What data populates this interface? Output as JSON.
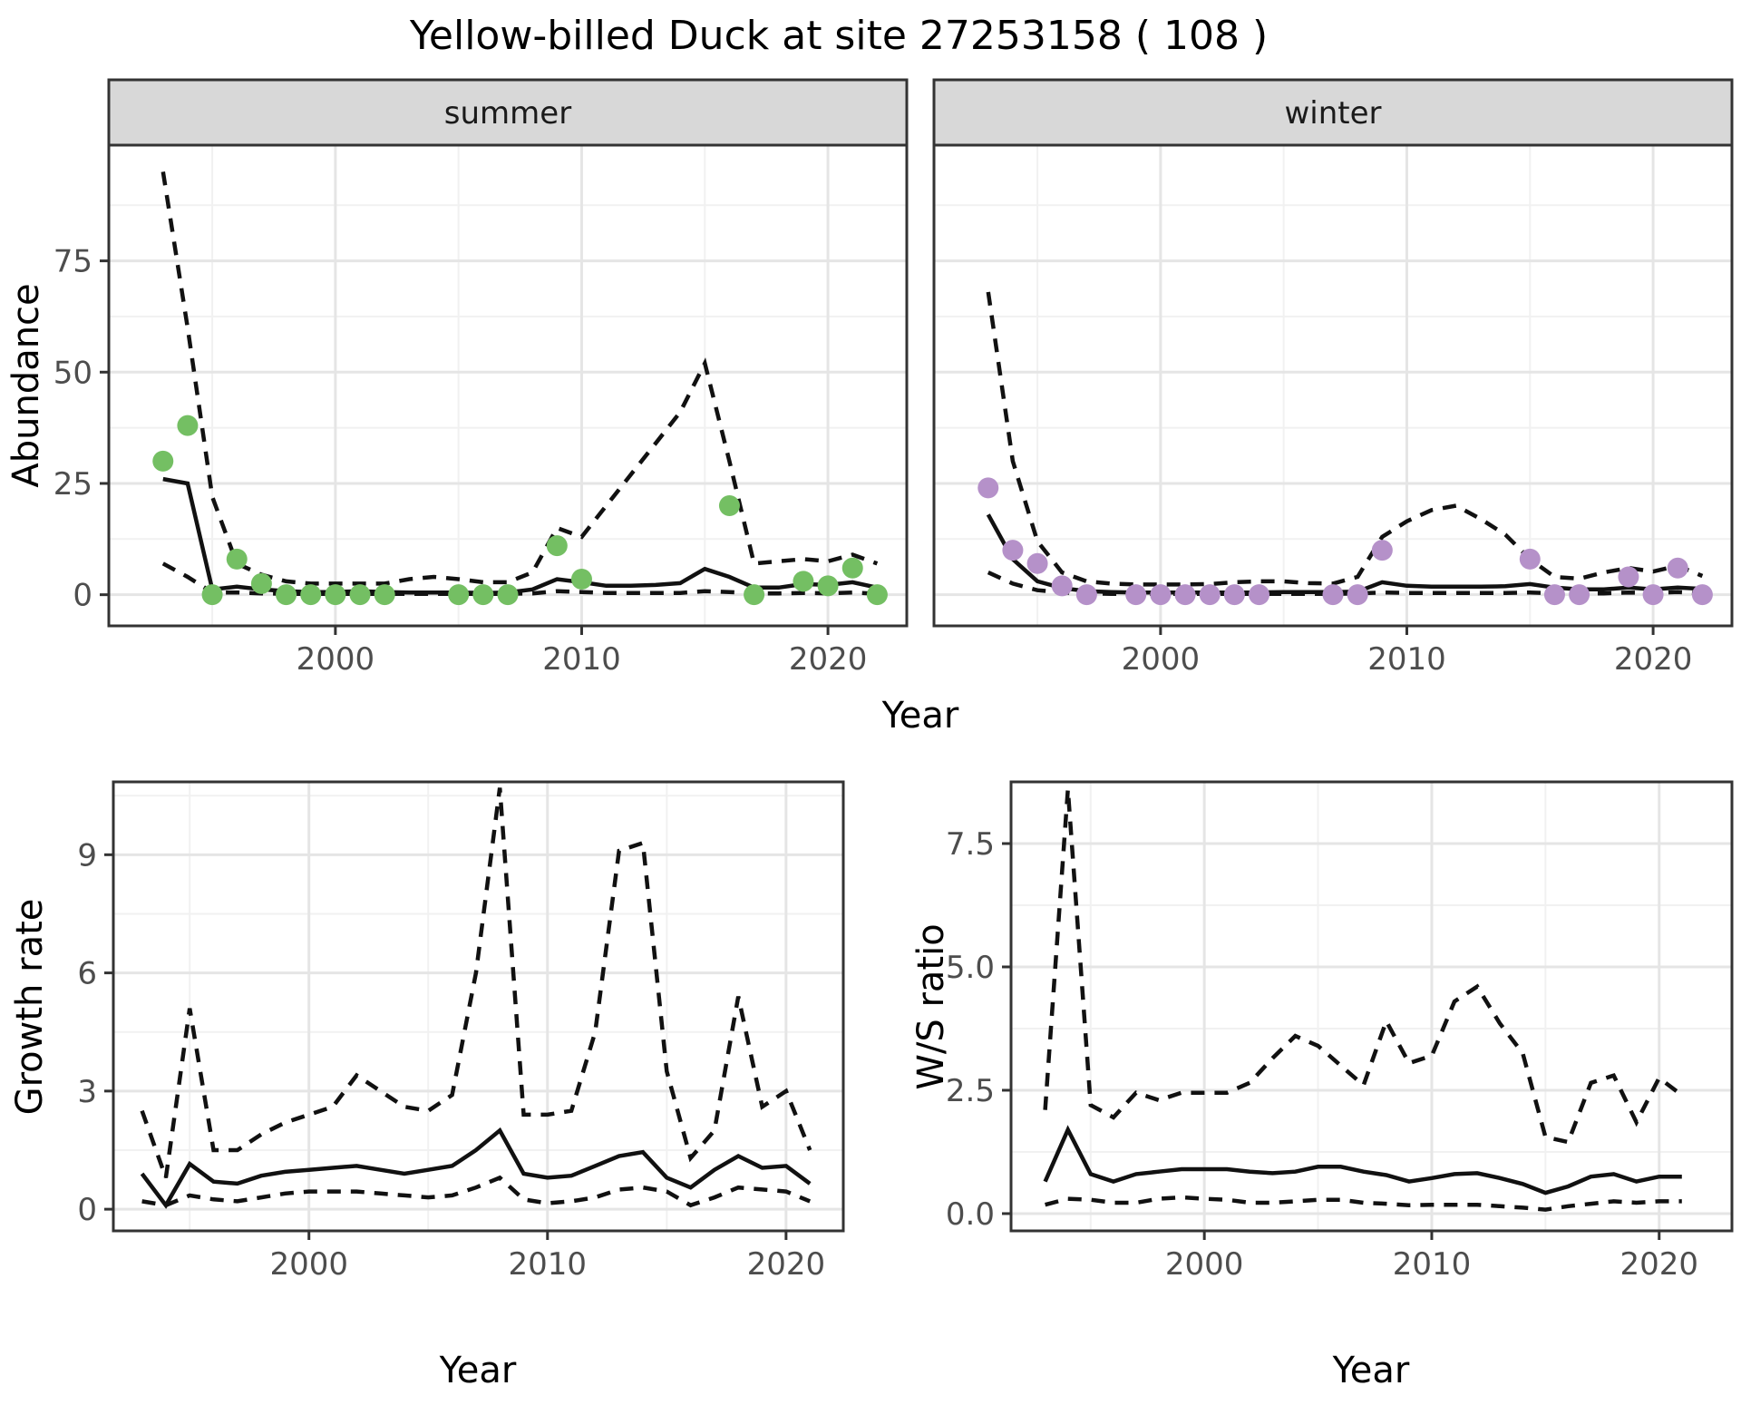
{
  "title": "Yellow-billed Duck at site 27253158 ( 108 )",
  "colors": {
    "summer_point": "#74bf63",
    "winter_point": "#b591c9",
    "line": "#111111",
    "grid_major": "#e5e5e5",
    "grid_minor": "#f1f1f1",
    "panel_border": "#333333",
    "strip_fill": "#d8d8d8",
    "strip_border": "#333333",
    "tick_label": "#4d4d4d",
    "panel_bg": "#ffffff"
  },
  "chart_data": [
    {
      "id": "abundance-summer",
      "type": "line",
      "facet_label": "summer",
      "xlabel": "Year",
      "ylabel": "Abundance",
      "grid": true,
      "legend_position": "none",
      "xlim": [
        1990.8,
        2023.2
      ],
      "ylim": [
        -7,
        101
      ],
      "x_ticks": [
        2000,
        2010,
        2020
      ],
      "x_tick_labels": [
        "2000",
        "2010",
        "2020"
      ],
      "x_minor": [
        1995,
        2005,
        2015
      ],
      "y_ticks": [
        0,
        25,
        50,
        75
      ],
      "y_tick_labels": [
        "0",
        "25",
        "50",
        "75"
      ],
      "y_minor": [
        12.5,
        37.5,
        62.5,
        87.5
      ],
      "x": [
        1993,
        1994,
        1995,
        1996,
        1997,
        1998,
        1999,
        2000,
        2001,
        2002,
        2003,
        2004,
        2005,
        2006,
        2007,
        2008,
        2009,
        2010,
        2011,
        2012,
        2013,
        2014,
        2015,
        2016,
        2017,
        2018,
        2019,
        2020,
        2021,
        2022
      ],
      "series": [
        {
          "name": "model-median",
          "style": "solid",
          "values": [
            26,
            25,
            1.2,
            1.8,
            1.2,
            0.8,
            0.6,
            0.6,
            0.8,
            0.6,
            0.5,
            0.5,
            0.5,
            0.4,
            0.5,
            1.2,
            3.5,
            2.8,
            2.0,
            2.0,
            2.2,
            2.6,
            5.8,
            4.0,
            1.6,
            1.6,
            2.4,
            2.2,
            2.8,
            1.6
          ]
        },
        {
          "name": "upper-credible-interval",
          "style": "dashed",
          "values": [
            95,
            60,
            22,
            7,
            4.5,
            3,
            2.5,
            2.5,
            2.5,
            2.5,
            3.5,
            4,
            3.5,
            2.8,
            2.8,
            5,
            15,
            13,
            20,
            27,
            34,
            41,
            52,
            30,
            7,
            7.5,
            8,
            7.5,
            9,
            7
          ]
        },
        {
          "name": "lower-credible-interval",
          "style": "dashed",
          "values": [
            7,
            4,
            0.5,
            0.5,
            0.3,
            0.2,
            0.2,
            0.2,
            0.2,
            0.2,
            0.2,
            0.2,
            0.2,
            0.2,
            0.2,
            0.3,
            0.8,
            0.6,
            0.4,
            0.4,
            0.4,
            0.4,
            0.8,
            0.6,
            0.3,
            0.3,
            0.4,
            0.3,
            0.5,
            0.2
          ]
        }
      ],
      "points": {
        "name": "observed-summer-counts",
        "color_key": "summer_point",
        "data": [
          [
            1993,
            30
          ],
          [
            1994,
            38
          ],
          [
            1995,
            0
          ],
          [
            1996,
            8
          ],
          [
            1997,
            2.5
          ],
          [
            1998,
            0
          ],
          [
            1999,
            0
          ],
          [
            2000,
            0
          ],
          [
            2001,
            0
          ],
          [
            2002,
            0
          ],
          [
            2005,
            0
          ],
          [
            2006,
            0
          ],
          [
            2007,
            0
          ],
          [
            2009,
            11
          ],
          [
            2010,
            3.5
          ],
          [
            2016,
            20
          ],
          [
            2017,
            0
          ],
          [
            2019,
            3
          ],
          [
            2020,
            2
          ],
          [
            2021,
            6
          ],
          [
            2022,
            0
          ]
        ]
      }
    },
    {
      "id": "abundance-winter",
      "type": "line",
      "facet_label": "winter",
      "xlabel": "Year",
      "ylabel": "",
      "grid": true,
      "legend_position": "none",
      "xlim": [
        1990.8,
        2023.2
      ],
      "ylim": [
        -7,
        101
      ],
      "x_ticks": [
        2000,
        2010,
        2020
      ],
      "x_tick_labels": [
        "2000",
        "2010",
        "2020"
      ],
      "x_minor": [
        1995,
        2005,
        2015
      ],
      "y_ticks": [
        0,
        25,
        50,
        75
      ],
      "y_tick_labels": [
        "0",
        "25",
        "50",
        "75"
      ],
      "y_minor": [
        12.5,
        37.5,
        62.5,
        87.5
      ],
      "x": [
        1993,
        1994,
        1995,
        1996,
        1997,
        1998,
        1999,
        2000,
        2001,
        2002,
        2003,
        2004,
        2005,
        2006,
        2007,
        2008,
        2009,
        2010,
        2011,
        2012,
        2013,
        2014,
        2015,
        2016,
        2017,
        2018,
        2019,
        2020,
        2021,
        2022
      ],
      "series": [
        {
          "name": "model-median",
          "style": "solid",
          "values": [
            18,
            8,
            3,
            1.5,
            0.8,
            0.6,
            0.5,
            0.5,
            0.5,
            0.5,
            0.5,
            0.5,
            0.6,
            0.6,
            0.6,
            0.7,
            2.8,
            2.0,
            1.8,
            1.8,
            1.8,
            1.9,
            2.4,
            1.6,
            1.2,
            1.2,
            1.6,
            1.2,
            1.6,
            1.3
          ]
        },
        {
          "name": "upper-credible-interval",
          "style": "dashed",
          "values": [
            68,
            30,
            12,
            5,
            3,
            2.5,
            2.3,
            2.3,
            2.3,
            2.4,
            2.8,
            3,
            3,
            2.6,
            2.5,
            4,
            13,
            16.5,
            19,
            20,
            17,
            13.5,
            8,
            4,
            3.6,
            5,
            6,
            5.2,
            6.5,
            4.2
          ]
        },
        {
          "name": "lower-credible-interval",
          "style": "dashed",
          "values": [
            5,
            2.5,
            1,
            0.5,
            0.3,
            0.2,
            0.2,
            0.2,
            0.2,
            0.2,
            0.2,
            0.2,
            0.2,
            0.2,
            0.2,
            0.3,
            0.5,
            0.4,
            0.4,
            0.4,
            0.4,
            0.4,
            0.5,
            0.3,
            0.3,
            0.3,
            0.5,
            0.4,
            0.6,
            0.3
          ]
        }
      ],
      "points": {
        "name": "observed-winter-counts",
        "color_key": "winter_point",
        "data": [
          [
            1993,
            24
          ],
          [
            1994,
            10
          ],
          [
            1995,
            7
          ],
          [
            1996,
            2
          ],
          [
            1997,
            0
          ],
          [
            1999,
            0
          ],
          [
            2000,
            0
          ],
          [
            2001,
            0
          ],
          [
            2002,
            0
          ],
          [
            2003,
            0
          ],
          [
            2004,
            0
          ],
          [
            2007,
            0
          ],
          [
            2008,
            0
          ],
          [
            2009,
            10
          ],
          [
            2015,
            8
          ],
          [
            2016,
            0
          ],
          [
            2017,
            0
          ],
          [
            2019,
            4
          ],
          [
            2020,
            0
          ],
          [
            2021,
            6
          ],
          [
            2022,
            0
          ]
        ]
      }
    },
    {
      "id": "growth-rate",
      "type": "line",
      "facet_label": "",
      "xlabel": "Year",
      "ylabel": "Growth rate",
      "grid": true,
      "legend_position": "none",
      "xlim": [
        1991.8,
        2022.4
      ],
      "ylim": [
        -0.55,
        10.85
      ],
      "x_ticks": [
        2000,
        2010,
        2020
      ],
      "x_tick_labels": [
        "2000",
        "2010",
        "2020"
      ],
      "x_minor": [
        1995,
        2005,
        2015
      ],
      "y_ticks": [
        0,
        3,
        6,
        9
      ],
      "y_tick_labels": [
        "0",
        "3",
        "6",
        "9"
      ],
      "y_minor": [
        1.5,
        4.5,
        7.5,
        10.5
      ],
      "x": [
        1993,
        1994,
        1995,
        1996,
        1997,
        1998,
        1999,
        2000,
        2001,
        2002,
        2003,
        2004,
        2005,
        2006,
        2007,
        2008,
        2009,
        2010,
        2011,
        2012,
        2013,
        2014,
        2015,
        2016,
        2017,
        2018,
        2019,
        2020,
        2021
      ],
      "series": [
        {
          "name": "model-median",
          "style": "solid",
          "values": [
            0.9,
            0.1,
            1.15,
            0.7,
            0.65,
            0.85,
            0.95,
            1.0,
            1.05,
            1.1,
            1.0,
            0.9,
            1.0,
            1.1,
            1.5,
            2.0,
            0.9,
            0.8,
            0.85,
            1.1,
            1.35,
            1.45,
            0.8,
            0.55,
            1.0,
            1.35,
            1.05,
            1.1,
            0.65
          ]
        },
        {
          "name": "upper-credible-interval",
          "style": "dashed",
          "values": [
            2.5,
            0.8,
            5.1,
            1.5,
            1.5,
            1.9,
            2.2,
            2.4,
            2.6,
            3.4,
            3.0,
            2.6,
            2.5,
            2.9,
            6.0,
            10.7,
            2.4,
            2.4,
            2.5,
            4.5,
            9.1,
            9.3,
            3.5,
            1.3,
            2.0,
            5.4,
            2.6,
            3.0,
            1.5
          ]
        },
        {
          "name": "lower-credible-interval",
          "style": "dashed",
          "values": [
            0.2,
            0.1,
            0.35,
            0.25,
            0.2,
            0.3,
            0.4,
            0.45,
            0.45,
            0.45,
            0.4,
            0.35,
            0.3,
            0.35,
            0.55,
            0.8,
            0.25,
            0.15,
            0.2,
            0.3,
            0.5,
            0.55,
            0.45,
            0.1,
            0.3,
            0.55,
            0.5,
            0.45,
            0.2
          ]
        }
      ],
      "points": null
    },
    {
      "id": "ws-ratio",
      "type": "line",
      "facet_label": "",
      "xlabel": "Year",
      "ylabel": "W/S ratio",
      "grid": true,
      "legend_position": "none",
      "xlim": [
        1991.5,
        2023.2
      ],
      "ylim": [
        -0.35,
        8.75
      ],
      "x_ticks": [
        2000,
        2010,
        2020
      ],
      "x_tick_labels": [
        "2000",
        "2010",
        "2020"
      ],
      "x_minor": [
        1995,
        2005,
        2015
      ],
      "y_ticks": [
        0,
        2.5,
        5,
        7.5
      ],
      "y_tick_labels": [
        "0.0",
        "2.5",
        "5.0",
        "7.5"
      ],
      "y_minor": [
        1.25,
        3.75,
        6.25,
        8.75
      ],
      "x": [
        1993,
        1994,
        1995,
        1996,
        1997,
        1998,
        1999,
        2000,
        2001,
        2002,
        2003,
        2004,
        2005,
        2006,
        2007,
        2008,
        2009,
        2010,
        2011,
        2012,
        2013,
        2014,
        2015,
        2016,
        2017,
        2018,
        2019,
        2020,
        2021
      ],
      "series": [
        {
          "name": "model-median",
          "style": "solid",
          "values": [
            0.65,
            1.7,
            0.8,
            0.65,
            0.8,
            0.85,
            0.9,
            0.9,
            0.9,
            0.85,
            0.82,
            0.85,
            0.95,
            0.95,
            0.85,
            0.78,
            0.65,
            0.72,
            0.8,
            0.82,
            0.72,
            0.6,
            0.42,
            0.55,
            0.75,
            0.8,
            0.65,
            0.75,
            0.75
          ]
        },
        {
          "name": "upper-credible-interval",
          "style": "dashed",
          "values": [
            2.1,
            8.6,
            2.2,
            1.95,
            2.45,
            2.3,
            2.45,
            2.45,
            2.45,
            2.65,
            3.15,
            3.6,
            3.4,
            3.0,
            2.6,
            3.9,
            3.05,
            3.2,
            4.3,
            4.6,
            3.85,
            3.25,
            1.55,
            1.45,
            2.65,
            2.8,
            1.85,
            2.75,
            2.4
          ]
        },
        {
          "name": "lower-credible-interval",
          "style": "dashed",
          "values": [
            0.18,
            0.3,
            0.28,
            0.22,
            0.22,
            0.3,
            0.33,
            0.3,
            0.28,
            0.22,
            0.22,
            0.25,
            0.28,
            0.28,
            0.22,
            0.2,
            0.17,
            0.18,
            0.18,
            0.18,
            0.15,
            0.12,
            0.08,
            0.15,
            0.2,
            0.25,
            0.22,
            0.25,
            0.25
          ]
        }
      ],
      "points": null
    }
  ]
}
